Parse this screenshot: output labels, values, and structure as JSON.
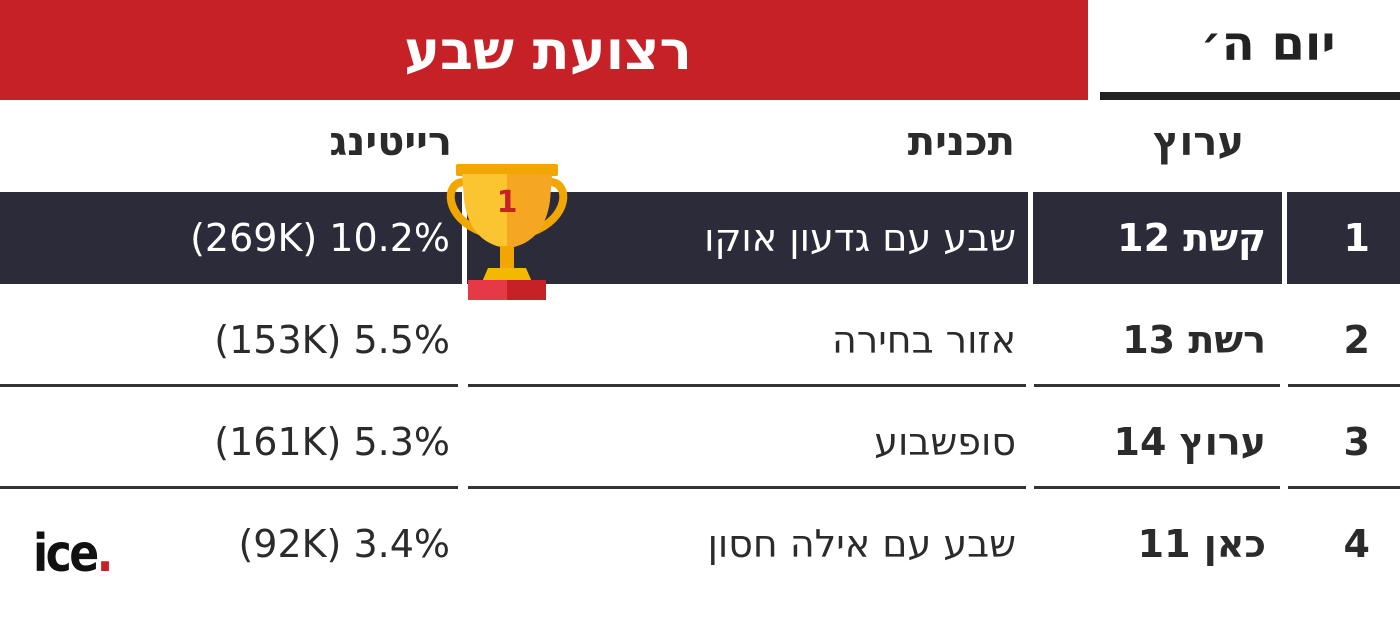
{
  "banner": {
    "title": "רצועת שבע",
    "color": "#c62127"
  },
  "day": {
    "label": "יום ה׳"
  },
  "headers": {
    "channel": "ערוץ",
    "program": "תכנית",
    "rating": "רייטינג"
  },
  "rows": [
    {
      "rank": "1",
      "channel": "קשת 12",
      "program": "שבע עם גדעון אוקו",
      "rating": "(269K) 10.2%",
      "highlight": true
    },
    {
      "rank": "2",
      "channel": "רשת 13",
      "program": "אזור בחירה",
      "rating": "(153K) 5.5%",
      "highlight": false
    },
    {
      "rank": "3",
      "channel": "ערוץ 14",
      "program": "סופשבוע",
      "rating": "(161K) 5.3%",
      "highlight": false
    },
    {
      "rank": "4",
      "channel": "כאן 11",
      "program": "שבע עם אילה חסון",
      "rating": "(92K) 3.4%",
      "highlight": false
    }
  ],
  "trophy": {
    "icon": "trophy-icon",
    "number": "1"
  },
  "logo": {
    "text": "ice",
    "dot": "."
  },
  "colors": {
    "dark_row": "#2c2b3a",
    "text": "#2b2b2b"
  }
}
